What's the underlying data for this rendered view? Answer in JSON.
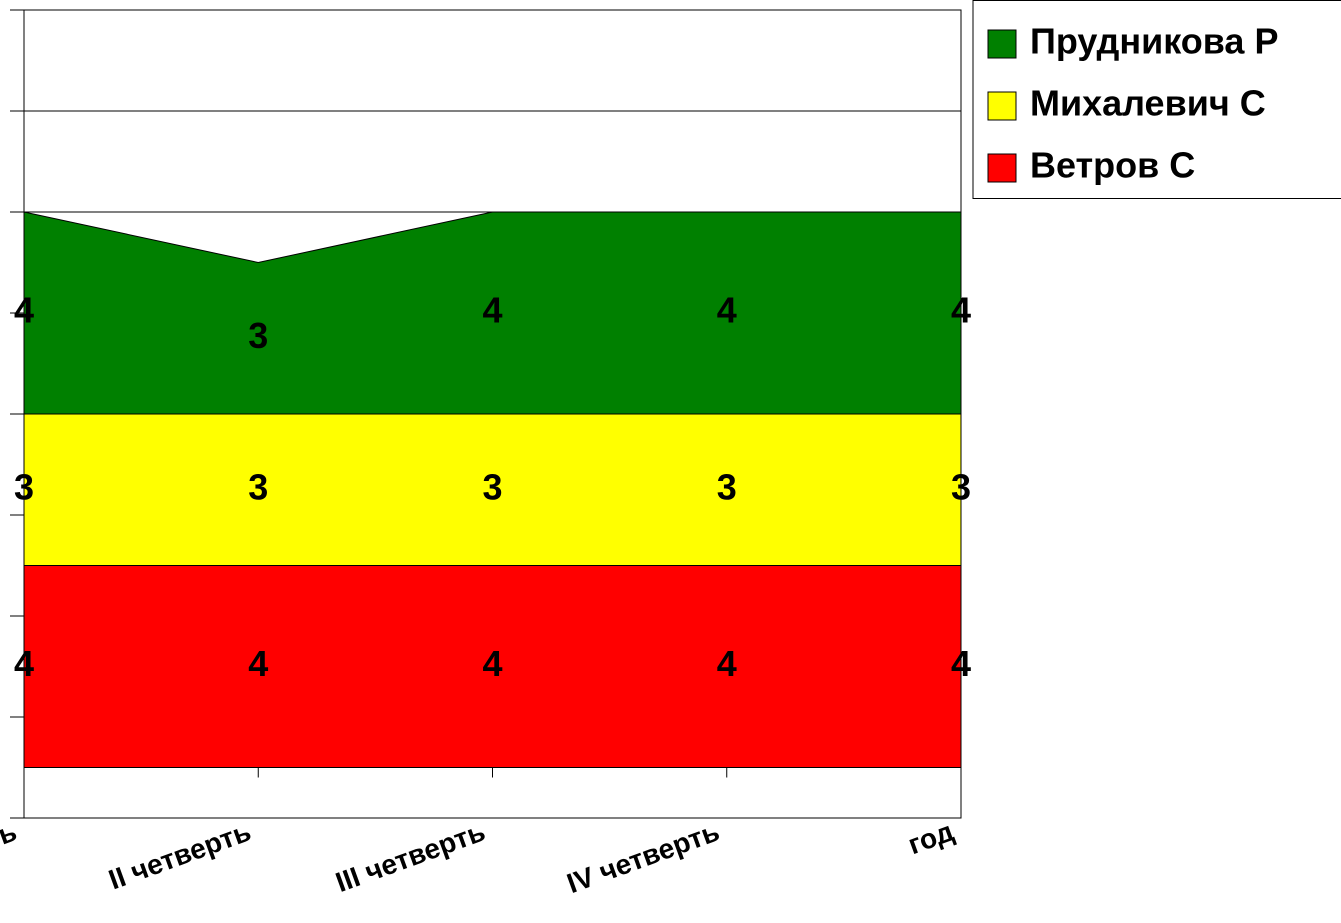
{
  "chart_data": {
    "type": "stacked_area",
    "categories": [
      "I четверть",
      "II четверть",
      "III четверть",
      "IV четверть",
      "год"
    ],
    "series": [
      {
        "name": "Ветров С",
        "color": "#ff0000",
        "values": [
          4,
          4,
          4,
          4,
          4
        ]
      },
      {
        "name": "Михалевич С",
        "color": "#ffff00",
        "values": [
          3,
          3,
          3,
          3,
          3
        ]
      },
      {
        "name": "Прудникова Р",
        "color": "#008000",
        "values": [
          4,
          3,
          4,
          4,
          4
        ]
      }
    ],
    "ylim": [
      -1,
      15
    ],
    "yticks": [
      -1,
      1,
      3,
      5,
      7,
      9,
      11,
      13,
      15
    ],
    "grid": true,
    "legend": "right"
  }
}
